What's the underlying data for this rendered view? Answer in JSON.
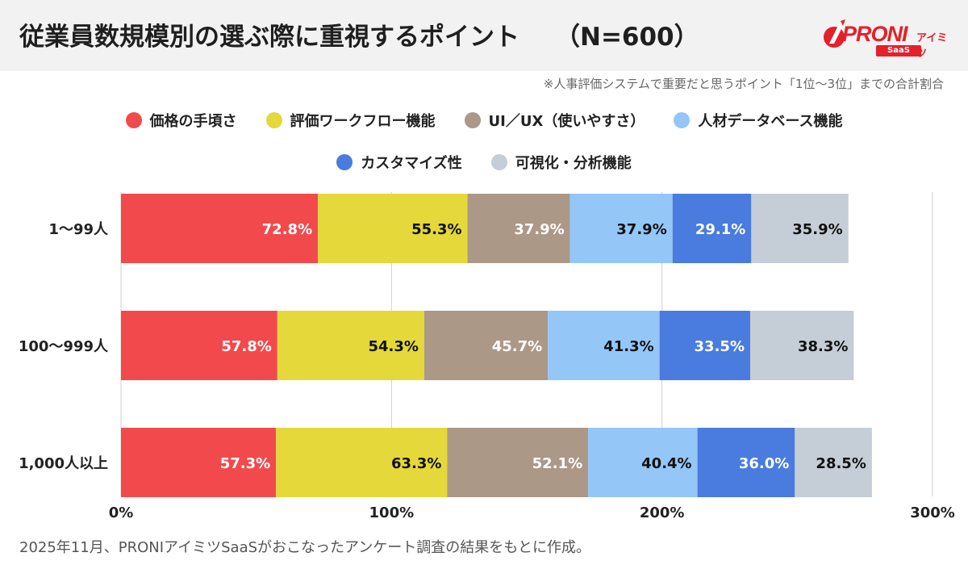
{
  "header": {
    "title": "従業員数規模別の選ぶ際に重視するポイント",
    "n_label": "（N=600）"
  },
  "logo": {
    "brand": "PRONI",
    "sub": "アイミツ",
    "badge": "SaaS"
  },
  "note": "※人事評価システムで重要だと思うポイント「1位〜3位」までの合計割合",
  "footer": "2025年11月、PRONIアイミツSaaSがおこなったアンケート調査の結果をもとに作成。",
  "colors": {
    "price": "#f24a4c",
    "workflow": "#e4d83a",
    "uiux": "#ab9887",
    "talent": "#94c6f8",
    "custom": "#4a7bde",
    "visual": "#c5cdd6"
  },
  "chart_data": {
    "type": "bar",
    "orientation": "horizontal",
    "stacked": true,
    "categories": [
      "1〜99人",
      "100〜999人",
      "1,000人以上"
    ],
    "series": [
      {
        "name": "価格の手頃さ",
        "color": "#f24a4c",
        "label_color": "#ffffff",
        "values": [
          72.8,
          57.8,
          57.3
        ]
      },
      {
        "name": "評価ワークフロー機能",
        "color": "#e4d83a",
        "label_color": "#111111",
        "values": [
          55.3,
          54.3,
          63.3
        ]
      },
      {
        "name": "UI／UX（使いやすさ）",
        "color": "#ab9887",
        "label_color": "#ffffff",
        "values": [
          37.9,
          45.7,
          52.1
        ]
      },
      {
        "name": "人材データベース機能",
        "color": "#94c6f8",
        "label_color": "#111111",
        "values": [
          37.9,
          41.3,
          40.4
        ]
      },
      {
        "name": "カスタマイズ性",
        "color": "#4a7bde",
        "label_color": "#ffffff",
        "values": [
          29.1,
          33.5,
          36.0
        ]
      },
      {
        "name": "可視化・分析機能",
        "color": "#c5cdd6",
        "label_color": "#111111",
        "values": [
          35.9,
          38.3,
          28.5
        ]
      }
    ],
    "xlim": [
      0,
      300
    ],
    "xticks": [
      0,
      100,
      200,
      300
    ],
    "xtick_labels": [
      "0%",
      "100%",
      "200%",
      "300%"
    ],
    "value_suffix": "%",
    "grid": true,
    "legend_position": "top-center"
  }
}
